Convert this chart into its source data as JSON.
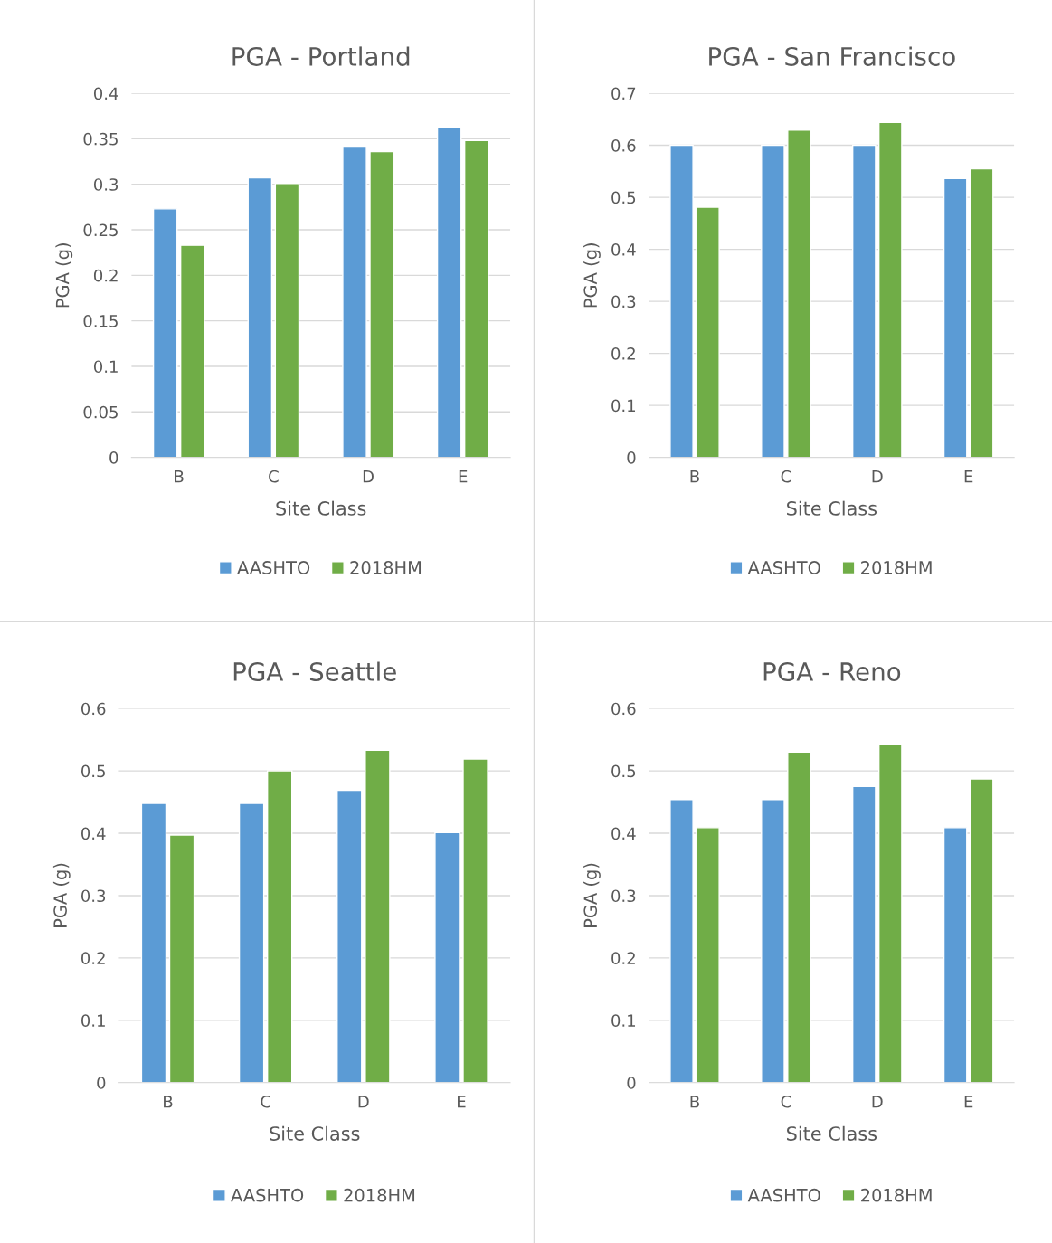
{
  "chart_data": [
    {
      "type": "bar",
      "title": "PGA - Portland",
      "xlabel": "Site Class",
      "ylabel": "PGA (g)",
      "categories": [
        "B",
        "C",
        "D",
        "E"
      ],
      "series": [
        {
          "name": "AASHTO",
          "color": "#5b9bd5",
          "values": [
            0.273,
            0.307,
            0.341,
            0.363
          ]
        },
        {
          "name": "2018HM",
          "color": "#70ad47",
          "values": [
            0.233,
            0.301,
            0.336,
            0.348
          ]
        }
      ],
      "ylim": [
        0,
        0.4
      ],
      "yticks": [
        0,
        0.05,
        0.1,
        0.15,
        0.2,
        0.25,
        0.3,
        0.35,
        0.4
      ],
      "grid": "y",
      "legend": "bottom"
    },
    {
      "type": "bar",
      "title": "PGA - San Francisco",
      "xlabel": "Site Class",
      "ylabel": "PGA (g)",
      "categories": [
        "B",
        "C",
        "D",
        "E"
      ],
      "series": [
        {
          "name": "AASHTO",
          "color": "#5b9bd5",
          "values": [
            0.6,
            0.6,
            0.6,
            0.536
          ]
        },
        {
          "name": "2018HM",
          "color": "#70ad47",
          "values": [
            0.481,
            0.629,
            0.644,
            0.555
          ]
        }
      ],
      "ylim": [
        0,
        0.7
      ],
      "yticks": [
        0,
        0.1,
        0.2,
        0.3,
        0.4,
        0.5,
        0.6,
        0.7
      ],
      "grid": "y",
      "legend": "bottom"
    },
    {
      "type": "bar",
      "title": "PGA - Seattle",
      "xlabel": "Site Class",
      "ylabel": "PGA (g)",
      "categories": [
        "B",
        "C",
        "D",
        "E"
      ],
      "series": [
        {
          "name": "AASHTO",
          "color": "#5b9bd5",
          "values": [
            0.448,
            0.448,
            0.469,
            0.401
          ]
        },
        {
          "name": "2018HM",
          "color": "#70ad47",
          "values": [
            0.397,
            0.5,
            0.533,
            0.519
          ]
        }
      ],
      "ylim": [
        0,
        0.6
      ],
      "yticks": [
        0,
        0.1,
        0.2,
        0.3,
        0.4,
        0.5,
        0.6
      ],
      "grid": "y",
      "legend": "bottom"
    },
    {
      "type": "bar",
      "title": "PGA - Reno",
      "xlabel": "Site Class",
      "ylabel": "PGA (g)",
      "categories": [
        "B",
        "C",
        "D",
        "E"
      ],
      "series": [
        {
          "name": "AASHTO",
          "color": "#5b9bd5",
          "values": [
            0.454,
            0.454,
            0.475,
            0.409
          ]
        },
        {
          "name": "2018HM",
          "color": "#70ad47",
          "values": [
            0.409,
            0.53,
            0.543,
            0.487
          ]
        }
      ],
      "ylim": [
        0,
        0.6
      ],
      "yticks": [
        0,
        0.1,
        0.2,
        0.3,
        0.4,
        0.5,
        0.6
      ],
      "grid": "y",
      "legend": "bottom"
    }
  ]
}
